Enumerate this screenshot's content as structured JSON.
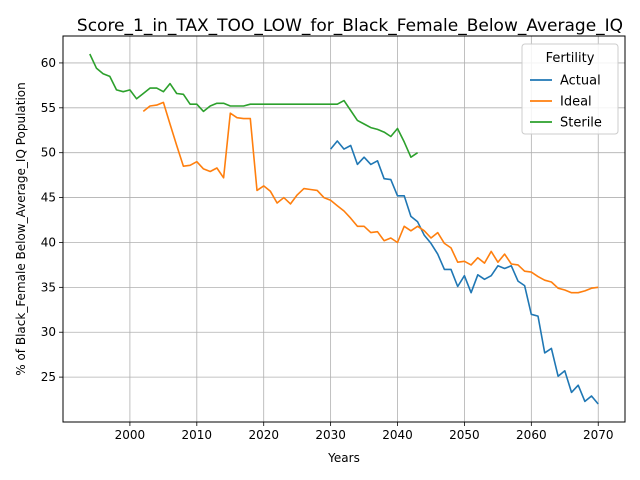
{
  "chart_data": {
    "type": "line",
    "title": "Score_1_in_TAX_TOO_LOW_for_Black_Female_Below_Average_IQ",
    "xlabel": "Years",
    "ylabel": "% of Black_Female Below_Average_IQ Population",
    "xlim": [
      1990,
      2074
    ],
    "ylim": [
      20.0,
      63.0
    ],
    "xticks": [
      2000,
      2010,
      2020,
      2030,
      2040,
      2050,
      2060,
      2070
    ],
    "yticks": [
      25,
      30,
      35,
      40,
      45,
      50,
      55,
      60
    ],
    "grid": true,
    "legend": {
      "title": "Fertility",
      "position": "top-right"
    },
    "series": [
      {
        "name": "Actual",
        "color": "#1f77b4",
        "x": [
          2030,
          2031,
          2032,
          2033,
          2034,
          2035,
          2036,
          2037,
          2038,
          2039,
          2040,
          2041,
          2042,
          2043,
          2044,
          2045,
          2046,
          2047,
          2048,
          2049,
          2050,
          2051,
          2052,
          2053,
          2054,
          2055,
          2056,
          2057,
          2058,
          2059,
          2060,
          2061,
          2062,
          2063,
          2064,
          2065,
          2066,
          2067,
          2068,
          2069,
          2070
        ],
        "y": [
          50.4,
          51.3,
          50.4,
          50.8,
          48.7,
          49.5,
          48.7,
          49.1,
          47.1,
          47.0,
          45.2,
          45.2,
          42.9,
          42.3,
          40.8,
          39.9,
          38.7,
          37.0,
          37.0,
          35.1,
          36.3,
          34.4,
          36.4,
          35.9,
          36.3,
          37.4,
          37.1,
          37.4,
          35.7,
          35.2,
          32.0,
          31.8,
          27.7,
          28.2,
          25.1,
          25.7,
          23.3,
          24.1,
          22.3,
          22.9,
          22.0
        ]
      },
      {
        "name": "Ideal",
        "color": "#ff7f0e",
        "x": [
          2002,
          2003,
          2004,
          2005,
          2006,
          2007,
          2008,
          2009,
          2010,
          2011,
          2012,
          2013,
          2014,
          2015,
          2016,
          2017,
          2018,
          2019,
          2020,
          2021,
          2022,
          2023,
          2024,
          2025,
          2026,
          2027,
          2028,
          2029,
          2030,
          2031,
          2032,
          2033,
          2034,
          2035,
          2036,
          2037,
          2038,
          2039,
          2040,
          2041,
          2042,
          2043,
          2044,
          2045,
          2046,
          2047,
          2048,
          2049,
          2050,
          2051,
          2052,
          2053,
          2054,
          2055,
          2056,
          2057,
          2058,
          2059,
          2060,
          2061,
          2062,
          2063,
          2064,
          2065,
          2066,
          2067,
          2068,
          2069,
          2070
        ],
        "y": [
          54.6,
          55.2,
          55.3,
          55.6,
          53.2,
          50.8,
          48.5,
          48.6,
          49.0,
          48.2,
          47.9,
          48.3,
          47.2,
          54.4,
          53.9,
          53.8,
          53.8,
          45.8,
          46.3,
          45.7,
          44.4,
          45.0,
          44.3,
          45.3,
          46.0,
          45.9,
          45.8,
          45.0,
          44.7,
          44.1,
          43.5,
          42.7,
          41.8,
          41.8,
          41.1,
          41.2,
          40.2,
          40.5,
          40.0,
          41.8,
          41.3,
          41.8,
          41.3,
          40.5,
          41.1,
          39.9,
          39.4,
          37.8,
          37.9,
          37.5,
          38.3,
          37.7,
          39.0,
          37.8,
          38.7,
          37.6,
          37.5,
          36.8,
          36.7,
          36.2,
          35.8,
          35.6,
          34.9,
          34.7,
          34.4,
          34.4,
          34.6,
          34.9,
          35.0
        ]
      },
      {
        "name": "Sterile",
        "color": "#2ca02c",
        "x": [
          1994,
          1995,
          1996,
          1997,
          1998,
          1999,
          2000,
          2001,
          2002,
          2003,
          2004,
          2005,
          2006,
          2007,
          2008,
          2009,
          2010,
          2011,
          2012,
          2013,
          2014,
          2015,
          2016,
          2017,
          2018,
          2019,
          2020,
          2021,
          2022,
          2023,
          2024,
          2025,
          2026,
          2027,
          2028,
          2029,
          2030,
          2031,
          2032,
          2033,
          2034,
          2035,
          2036,
          2037,
          2038,
          2039,
          2040,
          2041,
          2042,
          2043
        ],
        "y": [
          61.0,
          59.4,
          58.8,
          58.5,
          57.0,
          56.8,
          57.0,
          56.0,
          56.6,
          57.2,
          57.2,
          56.8,
          57.7,
          56.6,
          56.5,
          55.4,
          55.4,
          54.6,
          55.2,
          55.5,
          55.5,
          55.2,
          55.2,
          55.2,
          55.4,
          55.4,
          55.4,
          55.4,
          55.4,
          55.4,
          55.4,
          55.4,
          55.4,
          55.4,
          55.4,
          55.4,
          55.4,
          55.4,
          55.8,
          54.7,
          53.6,
          53.2,
          52.8,
          52.6,
          52.3,
          51.8,
          52.7,
          51.2,
          49.5,
          50.0
        ]
      }
    ]
  }
}
